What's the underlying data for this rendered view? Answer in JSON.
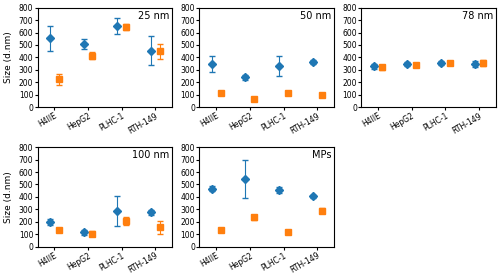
{
  "chart_data": [
    {
      "type": "errorbar",
      "title": "25 nm",
      "ylabel": "Size (d.nm)",
      "categories": [
        "H4IIE",
        "HepG2",
        "PLHC-1",
        "RTH-149"
      ],
      "ylim": [
        0,
        800
      ],
      "yticks": [
        0,
        100,
        200,
        300,
        400,
        500,
        600,
        700,
        800
      ],
      "series": [
        {
          "marker": "diamond",
          "values": [
            555,
            510,
            650,
            455
          ],
          "errors": [
            100,
            40,
            65,
            120
          ]
        },
        {
          "marker": "square",
          "values": [
            225,
            415,
            645,
            450
          ],
          "errors": [
            45,
            25,
            25,
            60
          ]
        }
      ]
    },
    {
      "type": "errorbar",
      "title": "50 nm",
      "categories": [
        "H4IIE",
        "HepG2",
        "PLHC-1",
        "RTH-149"
      ],
      "ylim": [
        0,
        800
      ],
      "yticks": [
        0,
        100,
        200,
        300,
        400,
        500,
        600,
        700,
        800
      ],
      "series": [
        {
          "marker": "diamond",
          "values": [
            345,
            240,
            330,
            365
          ],
          "errors": [
            65,
            20,
            80,
            15
          ]
        },
        {
          "marker": "square",
          "values": [
            110,
            65,
            110,
            95
          ],
          "errors": [
            8,
            8,
            8,
            8
          ]
        }
      ]
    },
    {
      "type": "errorbar",
      "title": "78 nm",
      "categories": [
        "H4IIE",
        "HepG2",
        "PLHC-1",
        "RTH-149"
      ],
      "ylim": [
        0,
        800
      ],
      "yticks": [
        0,
        100,
        200,
        300,
        400,
        500,
        600,
        700,
        800
      ],
      "series": [
        {
          "marker": "diamond",
          "values": [
            330,
            345,
            355,
            350
          ],
          "errors": [
            20,
            15,
            20,
            25
          ]
        },
        {
          "marker": "square",
          "values": [
            320,
            340,
            355,
            355
          ],
          "errors": [
            18,
            12,
            18,
            22
          ]
        }
      ]
    },
    {
      "type": "errorbar",
      "title": "100 nm",
      "ylabel": "Size (d.nm)",
      "categories": [
        "H4IIE",
        "HepG2",
        "PLHC-1",
        "RTH-149"
      ],
      "ylim": [
        0,
        800
      ],
      "yticks": [
        0,
        100,
        200,
        300,
        400,
        500,
        600,
        700,
        800
      ],
      "series": [
        {
          "marker": "diamond",
          "values": [
            200,
            115,
            285,
            275
          ],
          "errors": [
            25,
            20,
            120,
            20
          ]
        },
        {
          "marker": "square",
          "values": [
            130,
            105,
            205,
            155
          ],
          "errors": [
            15,
            18,
            30,
            50
          ]
        }
      ]
    },
    {
      "type": "errorbar",
      "title": "MPs",
      "categories": [
        "H4IIE",
        "HepG2",
        "PLHC-1",
        "RTH-149"
      ],
      "ylim": [
        0,
        800
      ],
      "yticks": [
        0,
        100,
        200,
        300,
        400,
        500,
        600,
        700,
        800
      ],
      "series": [
        {
          "marker": "diamond",
          "values": [
            465,
            545,
            455,
            405
          ],
          "errors": [
            20,
            150,
            25,
            10
          ]
        },
        {
          "marker": "square",
          "values": [
            130,
            235,
            120,
            290
          ],
          "errors": [
            10,
            20,
            10,
            20
          ]
        }
      ]
    }
  ]
}
